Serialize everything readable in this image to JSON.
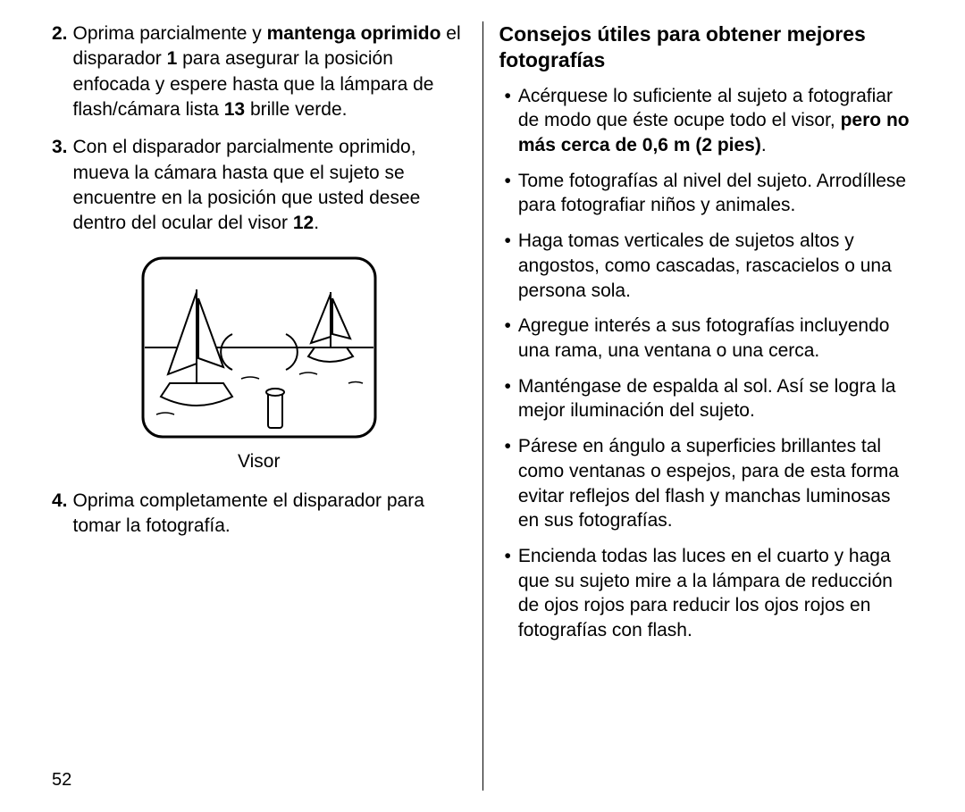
{
  "left": {
    "items": [
      {
        "num": "2.",
        "parts": [
          {
            "t": "Oprima parcialmente y ",
            "b": false
          },
          {
            "t": "mantenga oprimido",
            "b": true
          },
          {
            "t": " el disparador ",
            "b": false
          },
          {
            "t": "1",
            "b": true
          },
          {
            "t": " para asegurar la posición enfocada y espere hasta que la lámpara de flash/cámara lista ",
            "b": false
          },
          {
            "t": "13",
            "b": true
          },
          {
            "t": " brille verde.",
            "b": false
          }
        ]
      },
      {
        "num": "3.",
        "parts": [
          {
            "t": "Con el disparador parcialmente oprimido, mueva la cámara hasta que el sujeto se encuentre en la posición que usted desee dentro del ocular del visor ",
            "b": false
          },
          {
            "t": "12",
            "b": true
          },
          {
            "t": ".",
            "b": false
          }
        ]
      }
    ],
    "figure_caption": "Visor",
    "item4": {
      "num": "4.",
      "parts": [
        {
          "t": "Oprima completamente el disparador para tomar la fotografía.",
          "b": false
        }
      ]
    },
    "page_number": "52"
  },
  "right": {
    "heading": "Consejos útiles para obtener mejores fotografías",
    "items": [
      [
        {
          "t": "Acérquese lo suficiente al sujeto a fotografiar de modo que éste ocupe todo el visor, ",
          "b": false
        },
        {
          "t": "pero no más cerca de 0,6 m (2 pies)",
          "b": true
        },
        {
          "t": ".",
          "b": false
        }
      ],
      [
        {
          "t": "Tome fotografías al nivel del sujeto. Arrodíllese para fotografiar niños y animales.",
          "b": false
        }
      ],
      [
        {
          "t": "Haga tomas verticales de sujetos altos y angostos, como cascadas, rascacielos o una persona sola.",
          "b": false
        }
      ],
      [
        {
          "t": "Agregue interés a sus fotografías incluyendo una rama, una ventana o una cerca.",
          "b": false
        }
      ],
      [
        {
          "t": "Manténgase de espalda al sol.  Así se logra la mejor iluminación del sujeto.",
          "b": false
        }
      ],
      [
        {
          "t": "Párese en ángulo a superficies brillantes tal como ventanas o espejos, para de esta forma evitar reflejos del flash y manchas luminosas en sus fotografías.",
          "b": false
        }
      ],
      [
        {
          "t": "Encienda todas las luces en el cuarto y haga que su sujeto mire a la lámpara de reducción de ojos rojos para reducir los ojos rojos en fotografías con flash.",
          "b": false
        }
      ]
    ]
  },
  "colors": {
    "text": "#000000",
    "background": "#ffffff",
    "stroke": "#000000"
  }
}
